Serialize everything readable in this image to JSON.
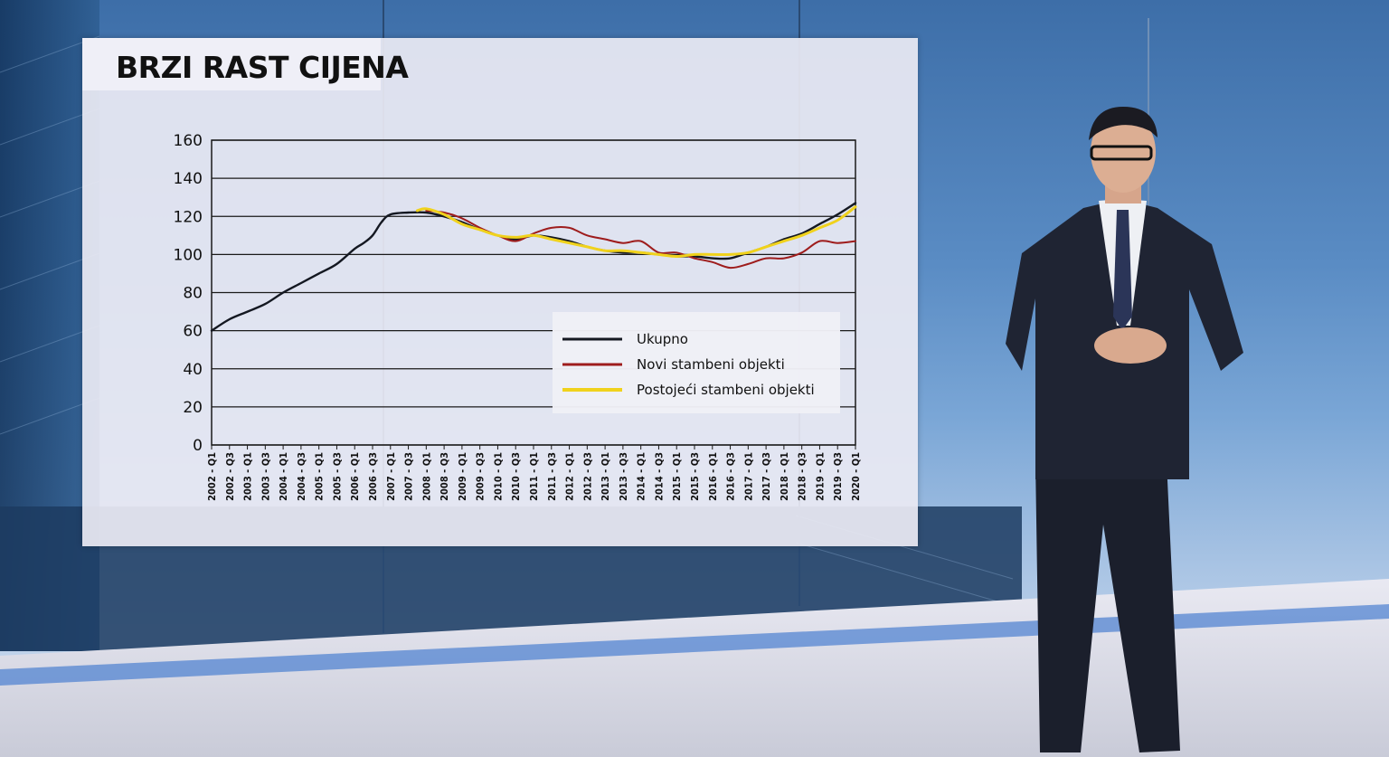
{
  "chart_data": {
    "type": "line",
    "title": "BRZI RAST CIJENA",
    "xlabel": "",
    "ylabel": "",
    "ylim": [
      0,
      160
    ],
    "yticks": [
      0,
      20,
      40,
      60,
      80,
      100,
      120,
      140,
      160
    ],
    "grid": true,
    "legend_position": "center-right",
    "categories": [
      "2002 - Q1",
      "2002 - Q3",
      "2003 - Q1",
      "2003 - Q3",
      "2004 - Q1",
      "2004 - Q3",
      "2005 - Q1",
      "2005 - Q3",
      "2006 - Q1",
      "2006 - Q3",
      "2007 - Q1",
      "2007 - Q3",
      "2008 - Q1",
      "2008 - Q3",
      "2009 - Q1",
      "2009 - Q3",
      "2010 - Q1",
      "2010 - Q3",
      "2011 - Q1",
      "2011 - Q3",
      "2012 - Q1",
      "2012 - Q3",
      "2013 - Q1",
      "2013 - Q3",
      "2014 - Q1",
      "2014 - Q3",
      "2015 - Q1",
      "2015 - Q3",
      "2016 - Q1",
      "2016 - Q3",
      "2017 - Q1",
      "2017 - Q3",
      "2018 - Q1",
      "2018 - Q3",
      "2019 - Q1",
      "2019 - Q3",
      "2020 - Q1"
    ],
    "series": [
      {
        "name": "Ukupno",
        "color": "#141821",
        "x": [
          2002.0,
          2002.5,
          2003.0,
          2003.5,
          2004.0,
          2004.5,
          2005.0,
          2005.5,
          2006.0,
          2006.25,
          2006.5,
          2006.75,
          2007.0,
          2007.5,
          2008.0,
          2008.5,
          2009.0,
          2009.5,
          2010.0,
          2010.5,
          2011.0,
          2011.5,
          2012.0,
          2012.5,
          2013.0,
          2013.5,
          2014.0,
          2014.5,
          2015.0,
          2015.5,
          2016.0,
          2016.5,
          2017.0,
          2017.5,
          2018.0,
          2018.5,
          2019.0,
          2019.5,
          2020.0
        ],
        "values": [
          60,
          66,
          70,
          74,
          80,
          85,
          90,
          95,
          103,
          106,
          110,
          117,
          121,
          122,
          122,
          120,
          117,
          113,
          110,
          108,
          110,
          109,
          107,
          104,
          102,
          101,
          101,
          100,
          99,
          99,
          98,
          98,
          101,
          104,
          108,
          111,
          116,
          121,
          127
        ]
      },
      {
        "name": "Novi stambeni objekti",
        "color": "#9e1c1c",
        "x": [
          2008.0,
          2008.5,
          2009.0,
          2009.5,
          2010.0,
          2010.5,
          2011.0,
          2011.5,
          2012.0,
          2012.5,
          2013.0,
          2013.5,
          2014.0,
          2014.5,
          2015.0,
          2015.5,
          2016.0,
          2016.5,
          2017.0,
          2017.5,
          2018.0,
          2018.5,
          2019.0,
          2019.5,
          2020.0
        ],
        "values": [
          123,
          122,
          119,
          114,
          110,
          107,
          111,
          114,
          114,
          110,
          108,
          106,
          107,
          101,
          101,
          98,
          96,
          93,
          95,
          98,
          98,
          101,
          107,
          106,
          107
        ]
      },
      {
        "name": "Postojeći stambeni objekti",
        "color": "#f0d21c",
        "x": [
          2007.75,
          2008.0,
          2008.5,
          2009.0,
          2009.5,
          2010.0,
          2010.5,
          2011.0,
          2011.5,
          2012.0,
          2012.5,
          2013.0,
          2013.5,
          2014.0,
          2014.5,
          2015.0,
          2015.5,
          2016.0,
          2016.5,
          2017.0,
          2017.5,
          2018.0,
          2018.5,
          2019.0,
          2019.5,
          2020.0
        ],
        "values": [
          123,
          124,
          121,
          116,
          113,
          110,
          109,
          110,
          108,
          106,
          104,
          102,
          102,
          101,
          100,
          99,
          100,
          100,
          100,
          101,
          104,
          107,
          110,
          114,
          118,
          125
        ]
      }
    ]
  }
}
